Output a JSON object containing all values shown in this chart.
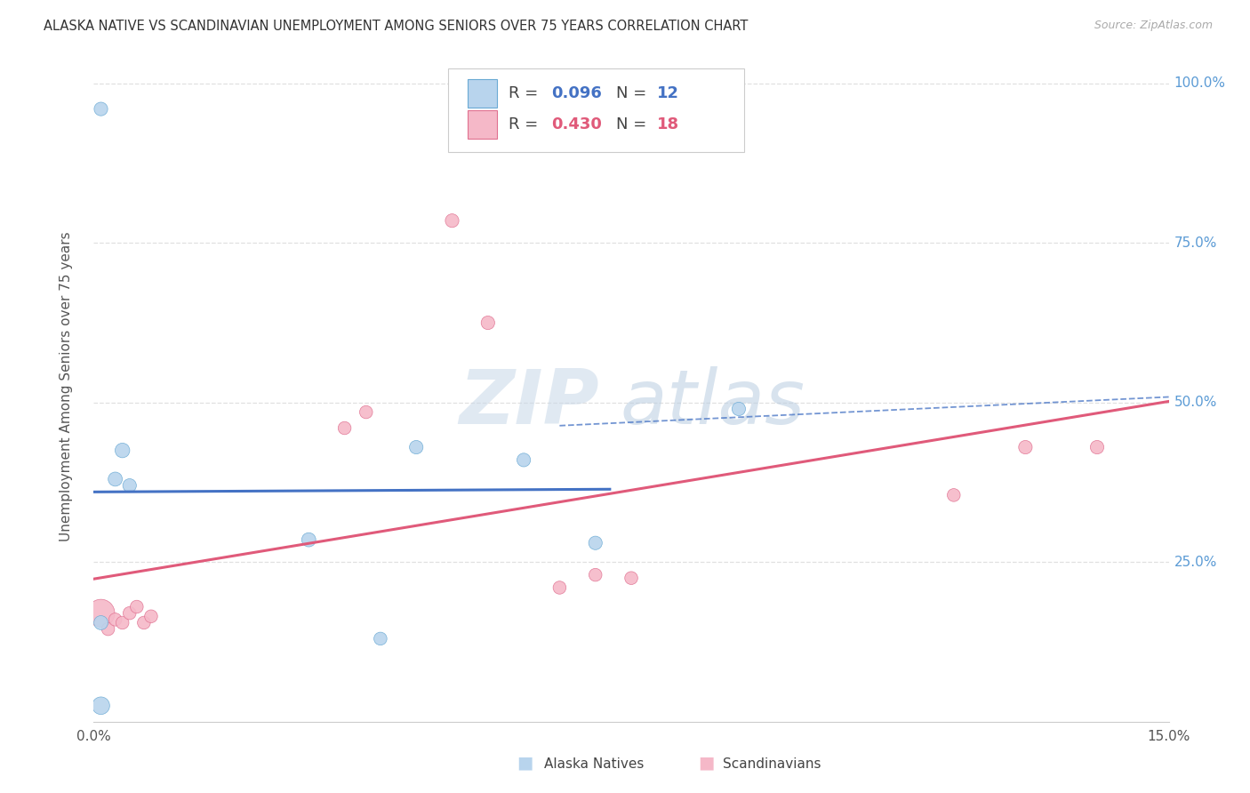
{
  "title": "ALASKA NATIVE VS SCANDINAVIAN UNEMPLOYMENT AMONG SENIORS OVER 75 YEARS CORRELATION CHART",
  "source": "Source: ZipAtlas.com",
  "ylabel": "Unemployment Among Seniors over 75 years",
  "xlim": [
    0.0,
    0.15
  ],
  "ylim": [
    0.0,
    1.05
  ],
  "alaska_native": {
    "label": "Alaska Natives",
    "color": "#b8d4ed",
    "edge_color": "#6aaad4",
    "line_color": "#4472c4",
    "R": 0.096,
    "N": 12,
    "x": [
      0.001,
      0.001,
      0.003,
      0.004,
      0.005,
      0.001,
      0.03,
      0.04,
      0.045,
      0.06,
      0.07,
      0.09
    ],
    "y": [
      0.025,
      0.155,
      0.38,
      0.425,
      0.37,
      0.96,
      0.285,
      0.13,
      0.43,
      0.41,
      0.28,
      0.49
    ],
    "sizes": [
      200,
      130,
      130,
      140,
      120,
      120,
      130,
      110,
      120,
      120,
      120,
      120
    ]
  },
  "scandinavian": {
    "label": "Scandinavians",
    "color": "#f5b8c8",
    "edge_color": "#e07090",
    "line_color": "#e05a7a",
    "R": 0.43,
    "N": 18,
    "x": [
      0.001,
      0.002,
      0.003,
      0.004,
      0.005,
      0.006,
      0.007,
      0.008,
      0.035,
      0.038,
      0.05,
      0.055,
      0.065,
      0.07,
      0.075,
      0.12,
      0.13,
      0.14
    ],
    "y": [
      0.17,
      0.145,
      0.16,
      0.155,
      0.17,
      0.18,
      0.155,
      0.165,
      0.46,
      0.485,
      0.785,
      0.625,
      0.21,
      0.23,
      0.225,
      0.355,
      0.43,
      0.43
    ],
    "sizes": [
      500,
      110,
      110,
      110,
      110,
      110,
      110,
      110,
      110,
      110,
      120,
      120,
      110,
      110,
      110,
      110,
      120,
      120
    ]
  },
  "bg_color": "#ffffff",
  "grid_color": "#e0e0e0",
  "watermark_ZIP_color": "#c8d8e8",
  "watermark_atlas_color": "#b8cce0"
}
